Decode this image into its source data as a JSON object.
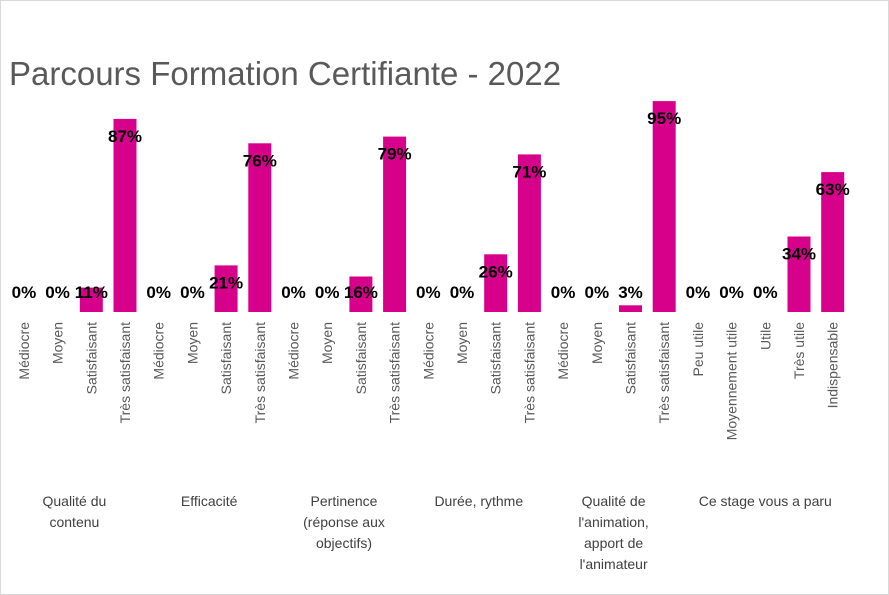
{
  "chart_data": {
    "type": "bar",
    "title": "Parcours Formation Certifiante - 2022",
    "xlabel": "",
    "ylabel": "",
    "ylim": [
      0,
      100
    ],
    "value_format": "percent",
    "grid": false,
    "legend": "none",
    "color": "#d6008b",
    "groups": [
      {
        "name": "Qualité du contenu",
        "name_lines": [
          "Qualité du",
          "contenu"
        ],
        "categories": [
          "Médiocre",
          "Moyen",
          "Satisfaisant",
          "Très satisfaisant"
        ],
        "values": [
          0,
          0,
          11,
          87
        ]
      },
      {
        "name": "Efficacité",
        "name_lines": [
          "Efficacité"
        ],
        "categories": [
          "Médiocre",
          "Moyen",
          "Satisfaisant",
          "Très satisfaisant"
        ],
        "values": [
          0,
          0,
          21,
          76
        ]
      },
      {
        "name": "Pertinence (réponse aux objectifs)",
        "name_lines": [
          "Pertinence",
          "(réponse aux",
          "objectifs)"
        ],
        "categories": [
          "Médiocre",
          "Moyen",
          "Satisfaisant",
          "Très satisfaisant"
        ],
        "values": [
          0,
          0,
          16,
          79
        ]
      },
      {
        "name": "Durée, rythme",
        "name_lines": [
          "Durée, rythme"
        ],
        "categories": [
          "Médiocre",
          "Moyen",
          "Satisfaisant",
          "Très satisfaisant"
        ],
        "values": [
          0,
          0,
          26,
          71
        ]
      },
      {
        "name": "Qualité de l'animation, apport de l'animateur",
        "name_lines": [
          "Qualité de",
          "l'animation,",
          "apport de",
          "l'animateur"
        ],
        "categories": [
          "Médiocre",
          "Moyen",
          "Satisfaisant",
          "Très satisfaisant"
        ],
        "values": [
          0,
          0,
          3,
          95
        ]
      },
      {
        "name": "Ce stage vous a paru",
        "name_lines": [
          "Ce stage vous a paru"
        ],
        "categories": [
          "Peu utile",
          "Moyennement utile",
          "Utile",
          "Très utile",
          "Indispensable"
        ],
        "values": [
          0,
          0,
          0,
          34,
          63
        ]
      }
    ]
  }
}
